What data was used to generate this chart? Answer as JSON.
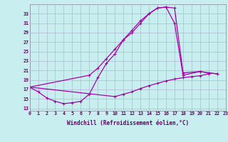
{
  "bg_color": "#c8eef0",
  "line_color": "#aa00aa",
  "grid_color": "#aaaacc",
  "curve_a_x": [
    0,
    1,
    2,
    3,
    4,
    5,
    6,
    7,
    8,
    9,
    10,
    11,
    12,
    13,
    14,
    15,
    16,
    17,
    18,
    20,
    21,
    22
  ],
  "curve_a_y": [
    17.5,
    16.5,
    15.2,
    14.5,
    14.0,
    14.2,
    14.5,
    16.0,
    19.5,
    22.5,
    24.5,
    27.5,
    29.5,
    31.5,
    33.0,
    34.2,
    34.4,
    34.2,
    20.5,
    20.8,
    20.5,
    20.3
  ],
  "curve_b_x": [
    0,
    7,
    8,
    9,
    10,
    11,
    12,
    13,
    14,
    15,
    16,
    17,
    18,
    20,
    21,
    22
  ],
  "curve_b_y": [
    17.5,
    20.0,
    21.5,
    23.5,
    25.5,
    27.5,
    29.0,
    31.0,
    33.0,
    34.2,
    34.4,
    31.0,
    20.0,
    20.8,
    20.5,
    20.3
  ],
  "curve_c_x": [
    0,
    10,
    11,
    12,
    13,
    14,
    15,
    16,
    17,
    18,
    19,
    20,
    21
  ],
  "curve_c_y": [
    17.5,
    15.5,
    16.0,
    16.5,
    17.2,
    17.8,
    18.3,
    18.8,
    19.2,
    19.5,
    19.7,
    19.9,
    20.3
  ],
  "ylim": [
    12.5,
    35
  ],
  "xlim": [
    0,
    23
  ],
  "yticks": [
    13,
    15,
    17,
    19,
    21,
    23,
    25,
    27,
    29,
    31,
    33
  ],
  "xticks": [
    0,
    1,
    2,
    3,
    4,
    5,
    6,
    7,
    8,
    9,
    10,
    11,
    12,
    13,
    14,
    15,
    16,
    17,
    18,
    19,
    20,
    21,
    22,
    23
  ],
  "xlabel": "Windchill (Refroidissement éolien,°C)",
  "xlabel_fontsize": 5.5,
  "tick_fontsize": 4.8,
  "marker": "+"
}
